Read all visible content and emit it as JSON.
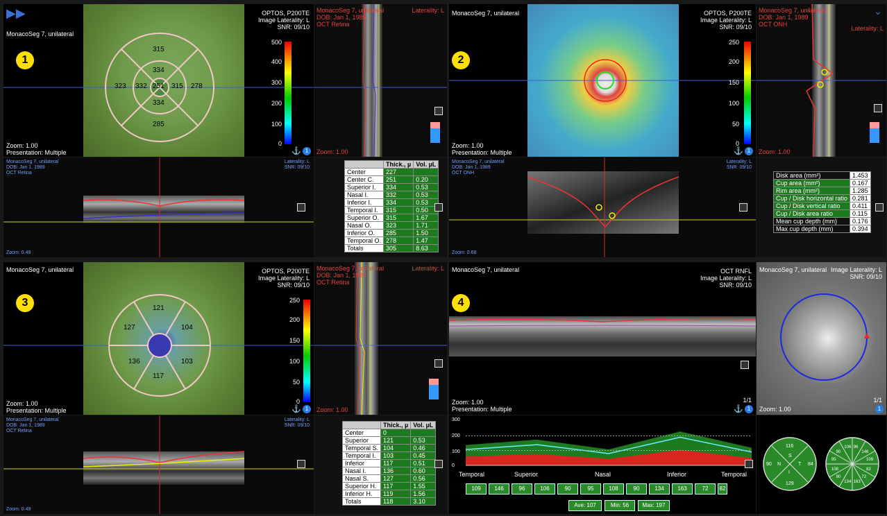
{
  "patient": "MonacoSeg 7, unilateral",
  "dob": "DOB: Jan 1, 1989",
  "laterality": "Laterality: L",
  "image_laterality": "Image Laterality: L",
  "device": "OPTOS, P200TE",
  "snr": "SNR: 09/10",
  "zoom1": "Zoom: 1.00",
  "presentation": "Presentation: Multiple",
  "zoom049": "Zoom: 0.49",
  "zoom068": "Zoom: 0.68",
  "oct_retina": "OCT Retina",
  "oct_onh": "OCT ONH",
  "oct_rnfl": "OCT RNFL",
  "frame": "1/1",
  "badge": "1",
  "panel_numbers": [
    "1",
    "2",
    "3",
    "4"
  ],
  "p1": {
    "grid": {
      "center": "251",
      "inner_sup": "334",
      "inner_nasal": "332",
      "inner_inf": "334",
      "inner_temp": "315",
      "outer_sup": "315",
      "outer_nasal": "323",
      "outer_inf": "285",
      "outer_temp": "278"
    },
    "scale": [
      "500",
      "400",
      "300",
      "200",
      "100",
      "0"
    ],
    "table": {
      "headers": [
        "",
        "Thick., µ",
        "Vol. µL"
      ],
      "rows": [
        [
          "Center",
          "227",
          ""
        ],
        [
          "Center C.",
          "251",
          "0.20"
        ],
        [
          "Superior I.",
          "334",
          "0.53"
        ],
        [
          "Nasal I.",
          "332",
          "0.53"
        ],
        [
          "Inferior I.",
          "334",
          "0.53"
        ],
        [
          "Temporal I.",
          "315",
          "0.50"
        ],
        [
          "Superior O.",
          "315",
          "1.67"
        ],
        [
          "Nasal O.",
          "323",
          "1.71"
        ],
        [
          "Inferior O.",
          "285",
          "1.50"
        ],
        [
          "Temporal O.",
          "278",
          "1.47"
        ],
        [
          "Totals",
          "305",
          "8.63"
        ]
      ]
    }
  },
  "p2": {
    "scale": [
      "250",
      "200",
      "150",
      "100",
      "50",
      "0"
    ],
    "disk_table": [
      [
        "Disk area (mm²)",
        "1.453"
      ],
      [
        "Cup area (mm²)",
        "0.167"
      ],
      [
        "Rim area (mm²)",
        "1.285"
      ],
      [
        "Cup / Disk horizontal ratio",
        "0.281"
      ],
      [
        "Cup / Disk vertical ratio",
        "0.411"
      ],
      [
        "Cup / Disk area ratio",
        "0.115"
      ],
      [
        "Mean cup depth (mm)",
        "0.176"
      ],
      [
        "Max cup depth (mm)",
        "0.394"
      ]
    ]
  },
  "p3": {
    "grid": {
      "s": "121",
      "st": "104",
      "sn": "127",
      "in": "136",
      "it": "103",
      "i": "117"
    },
    "scale": [
      "250",
      "200",
      "150",
      "100",
      "50",
      "0"
    ],
    "table": {
      "headers": [
        "",
        "Thick., µ",
        "Vol. µL"
      ],
      "rows": [
        [
          "Center",
          "0",
          ""
        ],
        [
          "Superior",
          "121",
          "0.53"
        ],
        [
          "Temporal S.",
          "104",
          "0.46"
        ],
        [
          "Temporal I.",
          "103",
          "0.45"
        ],
        [
          "Inferior",
          "117",
          "0.51"
        ],
        [
          "Nasal I.",
          "136",
          "0.60"
        ],
        [
          "Nasal S.",
          "127",
          "0.56"
        ],
        [
          "Superior H.",
          "117",
          "1.55"
        ],
        [
          "Inferior H.",
          "119",
          "1.56"
        ],
        [
          "Totals",
          "118",
          "3.10"
        ]
      ]
    }
  },
  "p4": {
    "chart_yticks": [
      "300",
      "200",
      "100",
      "0"
    ],
    "sectors": [
      "Temporal",
      "Superior",
      "Nasal",
      "Inferior",
      "Temporal"
    ],
    "clock_values": [
      "109",
      "146",
      "96",
      "106",
      "90",
      "95",
      "108",
      "90",
      "134",
      "163",
      "72",
      "82"
    ],
    "ave": "Ave: 107",
    "min": "Min: 56",
    "max": "Max: 197",
    "quad": {
      "s": "116",
      "n": "90",
      "t": "84",
      "i": "129",
      "S": "S",
      "N": "N",
      "T": "T",
      "I": "I"
    },
    "clock12": [
      "96",
      "146",
      "109",
      "82",
      "72",
      "163",
      "134",
      "90",
      "108",
      "95",
      "90",
      "106"
    ]
  },
  "chart_data": {
    "type": "area",
    "x": [
      "Temporal",
      "Superior",
      "Nasal",
      "Inferior",
      "Temporal"
    ],
    "ylim": [
      0,
      300
    ],
    "series": [
      {
        "values": [
          107,
          140,
          80,
          190,
          90
        ]
      }
    ]
  },
  "colors": {
    "green": "#1e7a1e",
    "red": "#d7261e",
    "yellow": "#ffe000"
  }
}
